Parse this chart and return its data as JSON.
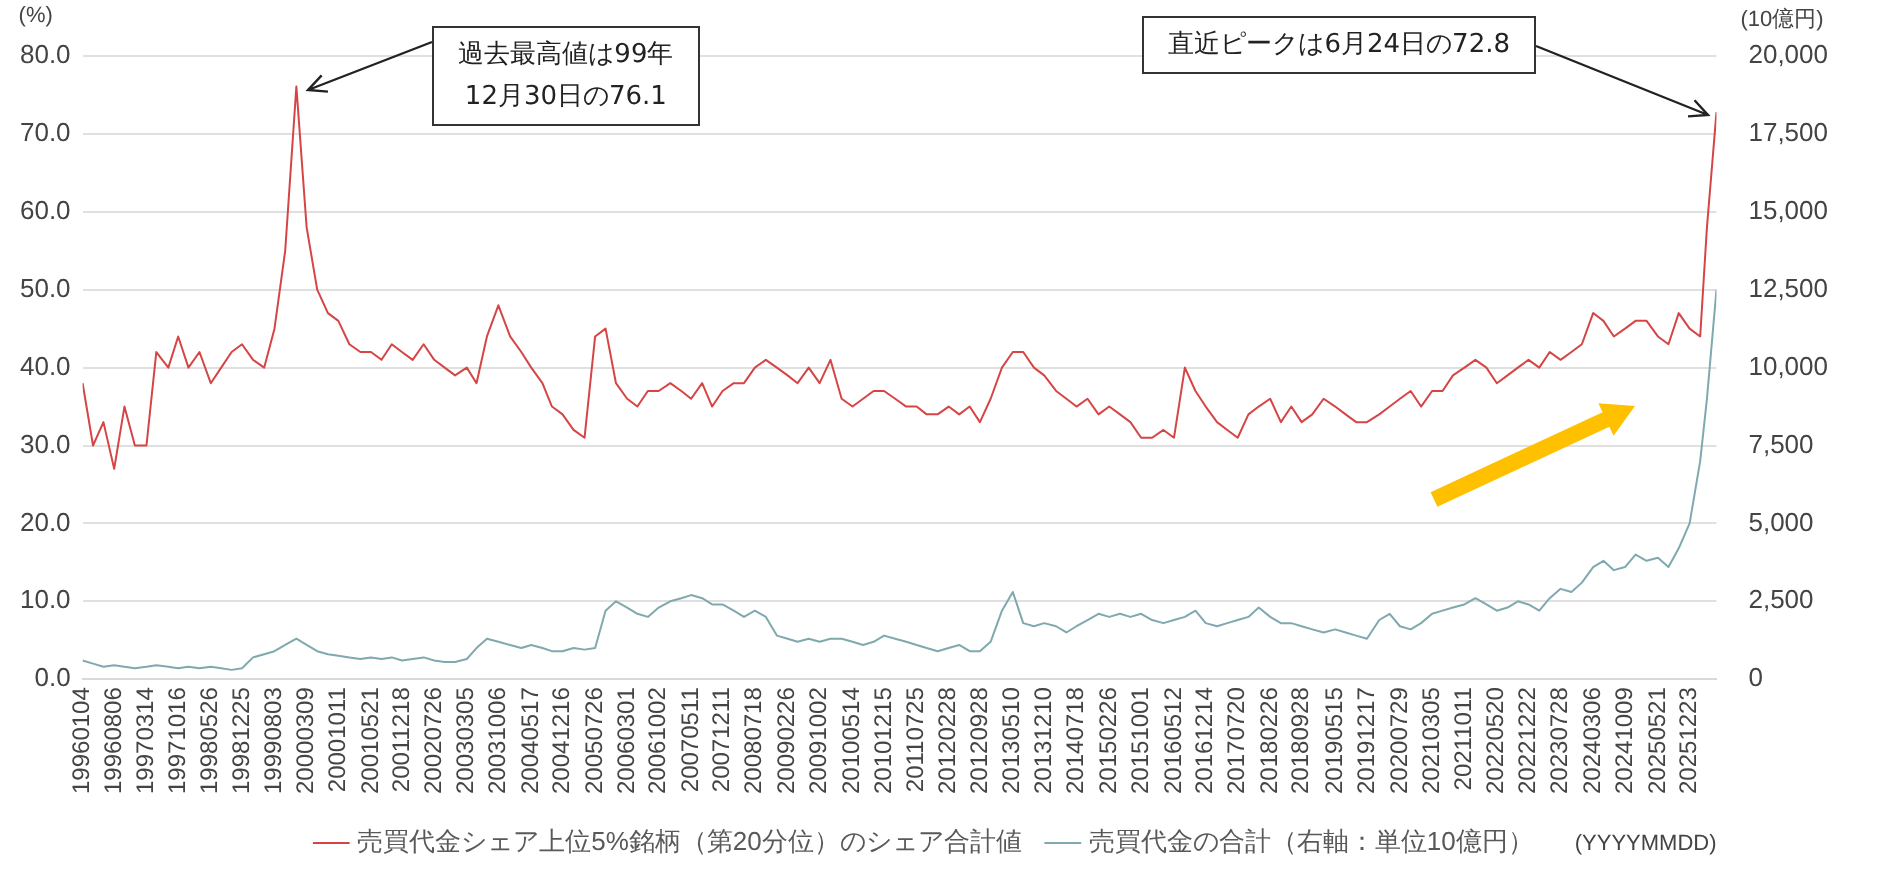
{
  "chart_data": {
    "type": "line",
    "ylabel": "(%)",
    "y2label": "(10億円)",
    "xlabel": "(YYYYMMDD)",
    "x": [
      "1996-01-04",
      "1996-03-15",
      "1996-05-25",
      "1996-08-06",
      "1996-10-15",
      "1996-12-25",
      "1997-03-14",
      "1997-05-20",
      "1997-08-10",
      "1997-10-16",
      "1997-12-25",
      "1998-03-10",
      "1998-05-26",
      "1998-08-05",
      "1998-10-15",
      "1998-12-25",
      "1999-03-10",
      "1999-05-25",
      "1999-08-03",
      "1999-10-15",
      "1999-12-30",
      "2000-03-09",
      "2000-05-20",
      "2000-08-01",
      "2000-10-11",
      "2000-12-25",
      "2001-03-10",
      "2001-05-21",
      "2001-08-01",
      "2001-10-10",
      "2001-12-18",
      "2002-03-01",
      "2002-05-15",
      "2002-07-26",
      "2002-10-05",
      "2002-12-15",
      "2003-03-05",
      "2003-05-10",
      "2003-07-20",
      "2003-10-06",
      "2003-12-25",
      "2004-03-10",
      "2004-05-17",
      "2004-08-01",
      "2004-10-05",
      "2004-12-16",
      "2005-03-01",
      "2005-05-15",
      "2005-07-26",
      "2005-10-05",
      "2005-12-15",
      "2006-03-01",
      "2006-05-10",
      "2006-07-20",
      "2006-10-02",
      "2006-12-20",
      "2007-03-05",
      "2007-05-11",
      "2007-07-25",
      "2007-10-01",
      "2007-12-11",
      "2008-02-25",
      "2008-05-05",
      "2008-07-18",
      "2008-10-01",
      "2008-12-15",
      "2009-02-26",
      "2009-05-05",
      "2009-07-20",
      "2009-10-02",
      "2009-12-15",
      "2010-03-01",
      "2010-05-14",
      "2010-07-25",
      "2010-10-05",
      "2010-12-15",
      "2011-03-01",
      "2011-05-15",
      "2011-07-25",
      "2011-10-01",
      "2011-12-15",
      "2012-02-28",
      "2012-05-10",
      "2012-07-20",
      "2012-09-28",
      "2012-12-10",
      "2013-02-25",
      "2013-05-10",
      "2013-07-20",
      "2013-10-01",
      "2013-12-10",
      "2014-03-01",
      "2014-05-10",
      "2014-07-18",
      "2014-10-01",
      "2014-12-15",
      "2015-02-26",
      "2015-05-10",
      "2015-07-20",
      "2015-10-01",
      "2015-12-15",
      "2016-03-01",
      "2016-05-12",
      "2016-07-25",
      "2016-10-05",
      "2016-12-14",
      "2017-03-01",
      "2017-05-10",
      "2017-07-20",
      "2017-10-01",
      "2017-12-10",
      "2018-02-26",
      "2018-05-10",
      "2018-07-20",
      "2018-09-28",
      "2018-12-10",
      "2019-02-25",
      "2019-05-15",
      "2019-07-25",
      "2019-10-05",
      "2019-12-17",
      "2020-03-10",
      "2020-05-20",
      "2020-07-29",
      "2020-10-10",
      "2020-12-20",
      "2021-03-05",
      "2021-05-15",
      "2021-07-25",
      "2021-10-11",
      "2021-12-25",
      "2022-03-10",
      "2022-05-20",
      "2022-08-01",
      "2022-10-10",
      "2022-12-22",
      "2023-03-05",
      "2023-05-15",
      "2023-07-28",
      "2023-10-10",
      "2023-12-20",
      "2024-03-06",
      "2024-05-15",
      "2024-07-25",
      "2024-10-09",
      "2024-12-20",
      "2025-03-05",
      "2025-05-21",
      "2025-08-01",
      "2025-10-10",
      "2025-12-23",
      "2026-03-05",
      "2026-04-20",
      "2026-06-24"
    ],
    "series": [
      {
        "name": "売買代金シェア上位5%銘柄（第20分位）のシェア合計値",
        "color": "#d64545",
        "values": [
          38,
          30,
          33,
          27,
          35,
          30,
          30,
          42,
          40,
          44,
          40,
          42,
          38,
          40,
          42,
          43,
          41,
          40,
          45,
          55,
          76.1,
          58,
          50,
          47,
          46,
          43,
          42,
          42,
          41,
          43,
          42,
          41,
          43,
          41,
          40,
          39,
          40,
          38,
          44,
          48,
          44,
          42,
          40,
          38,
          35,
          34,
          32,
          31,
          44,
          45,
          38,
          36,
          35,
          37,
          37,
          38,
          37,
          36,
          38,
          35,
          37,
          38,
          38,
          40,
          41,
          40,
          39,
          38,
          40,
          38,
          41,
          36,
          35,
          36,
          37,
          37,
          36,
          35,
          35,
          34,
          34,
          35,
          34,
          35,
          33,
          36,
          40,
          42,
          42,
          40,
          39,
          37,
          36,
          35,
          36,
          34,
          35,
          34,
          33,
          31,
          31,
          32,
          31,
          40,
          37,
          35,
          33,
          32,
          31,
          34,
          35,
          36,
          33,
          35,
          33,
          34,
          36,
          35,
          34,
          33,
          33,
          34,
          35,
          36,
          37,
          35,
          37,
          37,
          39,
          40,
          41,
          40,
          38,
          39,
          40,
          41,
          40,
          42,
          41,
          42,
          43,
          47,
          46,
          44,
          45,
          46,
          46,
          44,
          43,
          47,
          45,
          44,
          58,
          72.8
        ]
      },
      {
        "name": "売買代金の合計（右軸：単位10億円）",
        "color": "#7fa9ae",
        "axis": "y2",
        "values": [
          600,
          500,
          400,
          450,
          400,
          350,
          400,
          450,
          400,
          350,
          400,
          350,
          400,
          350,
          300,
          350,
          700,
          800,
          900,
          1100,
          1300,
          1100,
          900,
          800,
          750,
          700,
          650,
          700,
          650,
          700,
          600,
          650,
          700,
          600,
          550,
          550,
          650,
          1000,
          1300,
          1200,
          1100,
          1000,
          1100,
          1000,
          900,
          900,
          1000,
          950,
          1000,
          2200,
          2500,
          2300,
          2100,
          2000,
          2300,
          2500,
          2600,
          2700,
          2600,
          2400,
          2400,
          2200,
          2000,
          2200,
          2000,
          1400,
          1300,
          1200,
          1300,
          1200,
          1300,
          1300,
          1200,
          1100,
          1200,
          1400,
          1300,
          1200,
          1100,
          1000,
          900,
          1000,
          1100,
          900,
          900,
          1200,
          2200,
          2800,
          1800,
          1700,
          1800,
          1700,
          1500,
          1700,
          1900,
          2100,
          2000,
          2100,
          2000,
          2100,
          1900,
          1800,
          1900,
          2000,
          2200,
          1800,
          1700,
          1800,
          1900,
          2000,
          2300,
          2000,
          1800,
          1800,
          1700,
          1600,
          1500,
          1600,
          1500,
          1400,
          1300,
          1900,
          2100,
          1700,
          1600,
          1800,
          2100,
          2200,
          2300,
          2400,
          2600,
          2400,
          2200,
          2300,
          2500,
          2400,
          2200,
          2600,
          2900,
          2800,
          3100,
          3600,
          3800,
          3500,
          3600,
          4000,
          3800,
          3900,
          3600,
          4200,
          5000,
          7000,
          9000,
          12500
        ]
      }
    ],
    "xlim": [
      "1996-01-04",
      "2026-06-24"
    ],
    "xticks": [
      {
        "value": "1996-01-04",
        "label": "19960104"
      },
      {
        "value": "1996-08-06",
        "label": "19960806"
      },
      {
        "value": "1997-03-14",
        "label": "19970314"
      },
      {
        "value": "1997-10-16",
        "label": "19971016"
      },
      {
        "value": "1998-05-26",
        "label": "19980526"
      },
      {
        "value": "1998-12-25",
        "label": "19981225"
      },
      {
        "value": "1999-08-03",
        "label": "19990803"
      },
      {
        "value": "2000-03-09",
        "label": "20000309"
      },
      {
        "value": "2000-10-11",
        "label": "20001011"
      },
      {
        "value": "2001-05-21",
        "label": "20010521"
      },
      {
        "value": "2001-12-18",
        "label": "20011218"
      },
      {
        "value": "2002-07-26",
        "label": "20020726"
      },
      {
        "value": "2003-03-05",
        "label": "20030305"
      },
      {
        "value": "2003-10-06",
        "label": "20031006"
      },
      {
        "value": "2004-05-17",
        "label": "20040517"
      },
      {
        "value": "2004-12-16",
        "label": "20041216"
      },
      {
        "value": "2005-07-26",
        "label": "20050726"
      },
      {
        "value": "2006-03-01",
        "label": "20060301"
      },
      {
        "value": "2006-10-02",
        "label": "20061002"
      },
      {
        "value": "2007-05-11",
        "label": "20070511"
      },
      {
        "value": "2007-12-11",
        "label": "20071211"
      },
      {
        "value": "2008-07-18",
        "label": "20080718"
      },
      {
        "value": "2009-02-26",
        "label": "20090226"
      },
      {
        "value": "2009-10-02",
        "label": "20091002"
      },
      {
        "value": "2010-05-14",
        "label": "20100514"
      },
      {
        "value": "2010-12-15",
        "label": "20101215"
      },
      {
        "value": "2011-07-25",
        "label": "20110725"
      },
      {
        "value": "2012-02-28",
        "label": "20120228"
      },
      {
        "value": "2012-09-28",
        "label": "20120928"
      },
      {
        "value": "2013-05-10",
        "label": "20130510"
      },
      {
        "value": "2013-12-10",
        "label": "20131210"
      },
      {
        "value": "2014-07-18",
        "label": "20140718"
      },
      {
        "value": "2015-02-26",
        "label": "20150226"
      },
      {
        "value": "2015-10-01",
        "label": "20151001"
      },
      {
        "value": "2016-05-12",
        "label": "20160512"
      },
      {
        "value": "2016-12-14",
        "label": "20161214"
      },
      {
        "value": "2017-07-20",
        "label": "20170720"
      },
      {
        "value": "2018-02-26",
        "label": "20180226"
      },
      {
        "value": "2018-09-28",
        "label": "20180928"
      },
      {
        "value": "2019-05-15",
        "label": "20190515"
      },
      {
        "value": "2019-12-17",
        "label": "20191217"
      },
      {
        "value": "2020-07-29",
        "label": "20200729"
      },
      {
        "value": "2021-03-05",
        "label": "20210305"
      },
      {
        "value": "2021-10-11",
        "label": "20211011"
      },
      {
        "value": "2022-05-20",
        "label": "20220520"
      },
      {
        "value": "2022-12-22",
        "label": "20221222"
      },
      {
        "value": "2023-07-28",
        "label": "20230728"
      },
      {
        "value": "2024-03-06",
        "label": "20240306"
      },
      {
        "value": "2024-10-09",
        "label": "20241009"
      },
      {
        "value": "2025-05-21",
        "label": "20250521"
      },
      {
        "value": "2025-12-23",
        "label": "20251223"
      }
    ],
    "ylim": [
      0,
      80
    ],
    "yticks": [
      {
        "value": 0,
        "label": "0.0"
      },
      {
        "value": 10,
        "label": "10.0"
      },
      {
        "value": 20,
        "label": "20.0"
      },
      {
        "value": 30,
        "label": "30.0"
      },
      {
        "value": 40,
        "label": "40.0"
      },
      {
        "value": 50,
        "label": "50.0"
      },
      {
        "value": 60,
        "label": "60.0"
      },
      {
        "value": 70,
        "label": "70.0"
      },
      {
        "value": 80,
        "label": "80.0"
      }
    ],
    "y2lim": [
      0,
      20000
    ],
    "y2ticks": [
      0,
      {
        "value": 2500,
        "label": "2,500"
      },
      {
        "value": 5000,
        "label": "5,000"
      },
      {
        "value": 7500,
        "label": "7,500"
      },
      {
        "value": 10000,
        "label": "10,000"
      },
      {
        "value": 12500,
        "label": "12,500"
      },
      {
        "value": 15000,
        "label": "15,000"
      },
      {
        "value": 17500,
        "label": "17,500"
      },
      {
        "value": 20000,
        "label": "20,000"
      }
    ],
    "grid": "y",
    "legend": "bottom",
    "annotations": [
      {
        "text": "過去最高値は99年\n12月30日の76.1",
        "x": "1999-12-30",
        "y": 76.1
      },
      {
        "text": "直近ピークは6月24日の72.8",
        "x": "2026-06-24",
        "y": 72.8
      }
    ]
  }
}
